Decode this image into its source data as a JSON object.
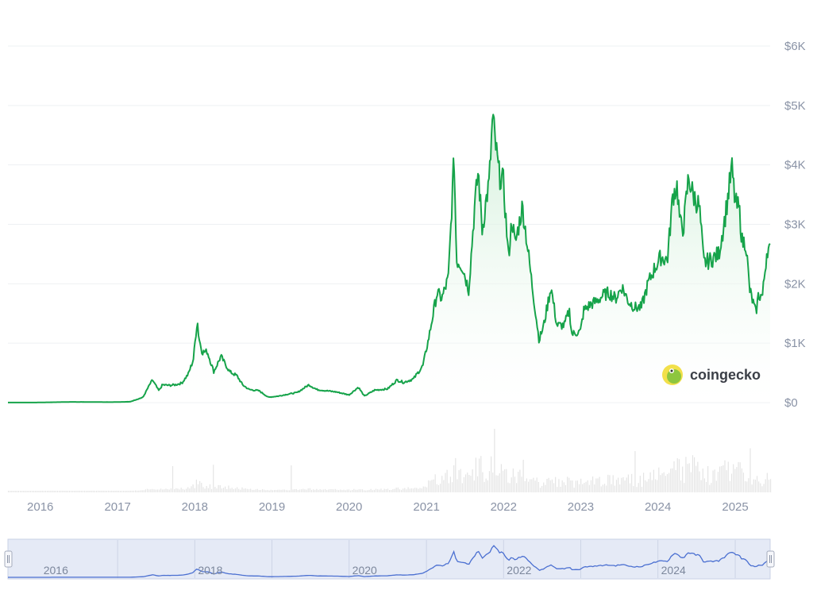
{
  "chart_data": {
    "type": "area",
    "title": "",
    "xlabel": "",
    "ylabel": "",
    "y_ticks": [
      "$0",
      "$1K",
      "$2K",
      "$3K",
      "$4K",
      "$5K",
      "$6K"
    ],
    "ylim": [
      0,
      6000
    ],
    "x_ticks": [
      "2016",
      "2017",
      "2018",
      "2019",
      "2020",
      "2021",
      "2022",
      "2023",
      "2024",
      "2025"
    ],
    "navigator_ticks": [
      "2016",
      "2018",
      "2020",
      "2022",
      "2024"
    ],
    "xlim": [
      "2015-08-01",
      "2025-06-15"
    ],
    "grid": true,
    "watermark": "coingecko",
    "colors": {
      "line": "#16a34a",
      "fill_top": "#d6f2dd",
      "volume": "#e4e4e4",
      "navigator_line": "#4a6fd1",
      "navigator_bg": "#e5eaf6"
    },
    "series": [
      {
        "x": [
          "2015-08-01",
          "2015-12-01",
          "2016-06-01",
          "2016-12-01",
          "2017-03-01",
          "2017-05-01",
          "2017-06-01",
          "2017-06-15",
          "2017-07-15",
          "2017-08-01",
          "2017-09-01",
          "2017-10-01",
          "2017-11-01",
          "2017-12-01",
          "2017-12-25",
          "2018-01-13",
          "2018-01-20",
          "2018-02-05",
          "2018-03-01",
          "2018-04-01",
          "2018-05-05",
          "2018-05-20",
          "2018-06-15",
          "2018-07-20",
          "2018-08-15",
          "2018-09-15",
          "2018-11-01",
          "2018-12-15",
          "2019-02-01",
          "2019-03-15",
          "2019-05-01",
          "2019-06-25",
          "2019-08-01",
          "2019-09-15",
          "2019-11-01",
          "2020-01-01",
          "2020-02-14",
          "2020-03-13",
          "2020-05-01",
          "2020-07-01",
          "2020-08-15",
          "2020-09-15",
          "2020-11-01",
          "2020-12-15",
          "2021-01-10",
          "2021-02-20",
          "2021-03-15",
          "2021-04-15",
          "2021-05-12",
          "2021-05-23",
          "2021-06-20",
          "2021-07-20",
          "2021-08-15",
          "2021-09-03",
          "2021-09-22",
          "2021-10-10",
          "2021-10-25",
          "2021-11-10",
          "2021-11-25",
          "2021-12-10",
          "2021-12-31",
          "2022-01-24",
          "2022-02-10",
          "2022-02-24",
          "2022-03-31",
          "2022-04-15",
          "2022-05-15",
          "2022-06-18",
          "2022-07-10",
          "2022-08-13",
          "2022-09-10",
          "2022-10-15",
          "2022-11-08",
          "2022-11-20",
          "2022-12-31",
          "2023-01-15",
          "2023-02-15",
          "2023-03-15",
          "2023-04-15",
          "2023-05-15",
          "2023-06-15",
          "2023-07-15",
          "2023-08-15",
          "2023-09-15",
          "2023-10-15",
          "2023-11-15",
          "2023-12-15",
          "2024-01-15",
          "2024-02-15",
          "2024-03-12",
          "2024-04-01",
          "2024-04-15",
          "2024-05-01",
          "2024-05-25",
          "2024-06-15",
          "2024-07-15",
          "2024-08-05",
          "2024-09-06",
          "2024-10-15",
          "2024-11-15",
          "2024-12-16",
          "2025-01-01",
          "2025-01-20",
          "2025-02-03",
          "2025-02-20",
          "2025-03-10",
          "2025-04-09",
          "2025-04-20",
          "2025-05-10",
          "2025-06-01",
          "2025-06-15"
        ],
        "values": [
          1,
          1,
          12,
          8,
          15,
          90,
          300,
          380,
          200,
          300,
          290,
          300,
          330,
          480,
          720,
          1400,
          1100,
          850,
          860,
          520,
          780,
          680,
          520,
          450,
          300,
          220,
          200,
          90,
          110,
          140,
          170,
          300,
          220,
          200,
          180,
          130,
          260,
          110,
          210,
          230,
          380,
          340,
          400,
          620,
          1050,
          1850,
          1750,
          2100,
          4150,
          2400,
          2300,
          1900,
          3200,
          3900,
          2900,
          3400,
          3700,
          4800,
          4300,
          3850,
          3700,
          2450,
          3100,
          2650,
          3300,
          2900,
          2000,
          1050,
          1300,
          1950,
          1300,
          1300,
          1550,
          1150,
          1200,
          1550,
          1650,
          1700,
          1800,
          1850,
          1750,
          1950,
          1700,
          1600,
          1600,
          2000,
          2250,
          2450,
          2400,
          3500,
          3650,
          3000,
          2950,
          3800,
          3500,
          3300,
          2350,
          2400,
          2500,
          3150,
          3950,
          3350,
          3250,
          2700,
          2700,
          1900,
          1500,
          1800,
          1800,
          2600,
          2550
        ]
      }
    ]
  }
}
